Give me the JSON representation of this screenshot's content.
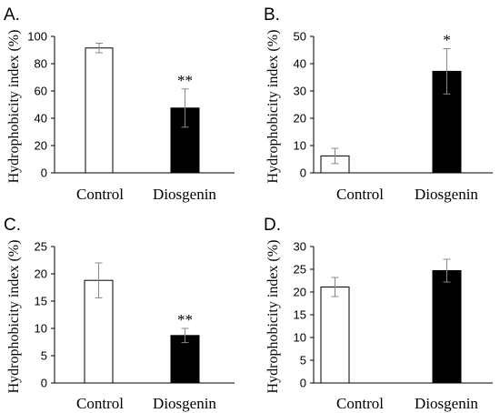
{
  "chart_data": [
    {
      "type": "bar",
      "panel": "A.",
      "ylabel": "Hydrophobicity index (%)",
      "categories": [
        "Control",
        "Diosgenin"
      ],
      "values": [
        91.5,
        47.5
      ],
      "errors": [
        3.5,
        14
      ],
      "significance": [
        "",
        "**"
      ],
      "bar_colors": [
        "#ffffff",
        "#000000"
      ],
      "ylim": [
        0,
        100
      ],
      "yticks": [
        0,
        20,
        40,
        60,
        80,
        100
      ]
    },
    {
      "type": "bar",
      "panel": "B.",
      "ylabel": "Hydrophobicity index (%)",
      "categories": [
        "Control",
        "Diosgenin"
      ],
      "values": [
        6.2,
        37.2
      ],
      "errors": [
        2.8,
        8.3
      ],
      "significance": [
        "",
        "*"
      ],
      "bar_colors": [
        "#ffffff",
        "#000000"
      ],
      "ylim": [
        0,
        50
      ],
      "yticks": [
        0,
        10,
        20,
        30,
        40,
        50
      ]
    },
    {
      "type": "bar",
      "panel": "C.",
      "ylabel": "Hydrophobicity index (%)",
      "categories": [
        "Control",
        "Diosgenin"
      ],
      "values": [
        18.8,
        8.7
      ],
      "errors": [
        3.2,
        1.3
      ],
      "significance": [
        "",
        "**"
      ],
      "bar_colors": [
        "#ffffff",
        "#000000"
      ],
      "ylim": [
        0,
        25
      ],
      "yticks": [
        0,
        5,
        10,
        15,
        20,
        25
      ]
    },
    {
      "type": "bar",
      "panel": "D.",
      "ylabel": "Hydrophobicity index (%)",
      "categories": [
        "Control",
        "Diosgenin"
      ],
      "values": [
        21.1,
        24.7
      ],
      "errors": [
        2.1,
        2.5
      ],
      "significance": [
        "",
        ""
      ],
      "bar_colors": [
        "#ffffff",
        "#000000"
      ],
      "ylim": [
        0,
        30
      ],
      "yticks": [
        0,
        5,
        10,
        15,
        20,
        25,
        30
      ]
    }
  ]
}
